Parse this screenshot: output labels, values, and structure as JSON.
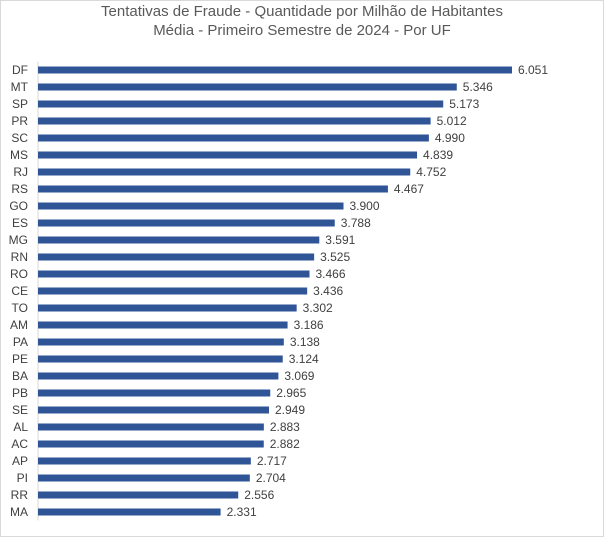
{
  "chart_data": {
    "type": "bar",
    "orientation": "horizontal",
    "title": "Tentativas de Fraude - Quantidade por Milhão de Habitantes",
    "subtitle": "Média - Primeiro Semestre de 2024 - Por UF",
    "categories": [
      "DF",
      "MT",
      "SP",
      "PR",
      "SC",
      "MS",
      "RJ",
      "RS",
      "GO",
      "ES",
      "MG",
      "RN",
      "RO",
      "CE",
      "TO",
      "AM",
      "PA",
      "PE",
      "BA",
      "PB",
      "SE",
      "AL",
      "AC",
      "AP",
      "PI",
      "RR",
      "MA"
    ],
    "values": [
      6051,
      5346,
      5173,
      5012,
      4990,
      4839,
      4752,
      4467,
      3900,
      3788,
      3591,
      3525,
      3466,
      3436,
      3302,
      3186,
      3138,
      3124,
      3069,
      2965,
      2949,
      2883,
      2882,
      2717,
      2704,
      2556,
      2331
    ],
    "value_labels": [
      "6.051",
      "5.346",
      "5.173",
      "5.012",
      "4.990",
      "4.839",
      "4.752",
      "4.467",
      "3.900",
      "3.788",
      "3.591",
      "3.525",
      "3.466",
      "3.436",
      "3.302",
      "3.186",
      "3.138",
      "3.124",
      "3.069",
      "2.965",
      "2.949",
      "2.883",
      "2.882",
      "2.717",
      "2.704",
      "2.556",
      "2.331"
    ],
    "xlim": [
      0,
      6051
    ],
    "grid": false,
    "legend": "none",
    "bar_color": "#2f5597"
  }
}
